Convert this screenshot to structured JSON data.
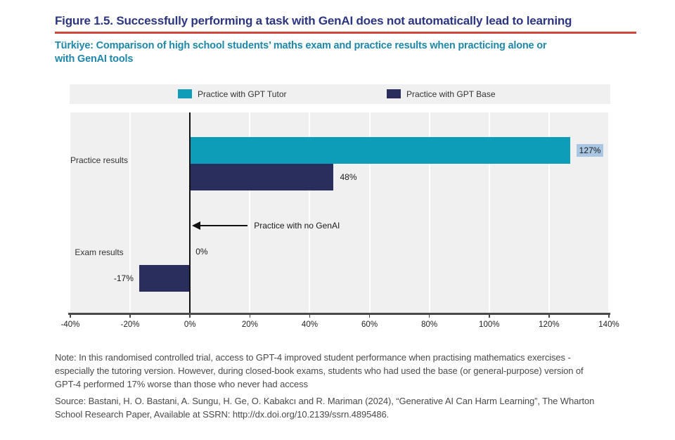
{
  "header": {
    "figure_title": "Figure 1.5. Successfully performing a task with GenAI does not automatically lead to learning",
    "title_color": "#2b3580",
    "rule_color": "#d0453c",
    "subtitle": "Türkiye: Comparison of high school students’ maths exam and practice results when practicing alone or\nwith GenAI tools",
    "subtitle_color": "#1e87aa"
  },
  "legend": {
    "background": "#f0f0f0",
    "items": [
      {
        "label": "Practice with GPT Tutor",
        "color": "#0d9db8"
      },
      {
        "label": "Practice with GPT Base",
        "color": "#2a2e5c"
      }
    ]
  },
  "chart_data": {
    "type": "bar",
    "orientation": "horizontal",
    "title": "",
    "categories": [
      "Practice results",
      "Exam results"
    ],
    "series": [
      {
        "name": "Practice with GPT Tutor",
        "color": "#0d9db8",
        "values": [
          127,
          0
        ],
        "labels": [
          "127%",
          "0%"
        ]
      },
      {
        "name": "Practice with GPT Base",
        "color": "#2a2e5c",
        "values": [
          48,
          -17
        ],
        "labels": [
          "48%",
          "-17%"
        ]
      }
    ],
    "xlim": [
      -40,
      140
    ],
    "x_ticks": [
      {
        "value": -40,
        "label": "-40%"
      },
      {
        "value": -20,
        "label": "-20%"
      },
      {
        "value": 0,
        "label": "0%"
      },
      {
        "value": 20,
        "label": "20%"
      },
      {
        "value": 40,
        "label": "40%"
      },
      {
        "value": 60,
        "label": "60%"
      },
      {
        "value": 80,
        "label": "80%"
      },
      {
        "value": 100,
        "label": "100%"
      },
      {
        "value": 120,
        "label": "120%"
      },
      {
        "value": 140,
        "label": "140%"
      }
    ],
    "annotation": {
      "label": "Practice with no GenAI",
      "points_to_value": 0
    },
    "highlighted_value_label": "127%",
    "highlight_color": "#a9c6e3",
    "plot_background": "#f0f0f0",
    "gridline_color": "#ffffff",
    "zero_line_color": "#111111",
    "grid": true,
    "legend_position": "top"
  },
  "notes": {
    "note": "Note: In this randomised controlled trial, access to GPT-4 improved student performance when practising mathematics exercises -\nespecially the tutoring version. However, during closed-book exams, students who had used the base (or general-purpose) version of\nGPT-4 performed 17% worse than those who never had access",
    "source": "Source: Bastani, H. O. Bastani, A. Sungu, H. Ge, O. Kabakcı and R. Mariman (2024), “Generative AI Can Harm Learning”, The Wharton\nSchool Research Paper, Available at SSRN: http://dx.doi.org/10.2139/ssrn.4895486."
  }
}
